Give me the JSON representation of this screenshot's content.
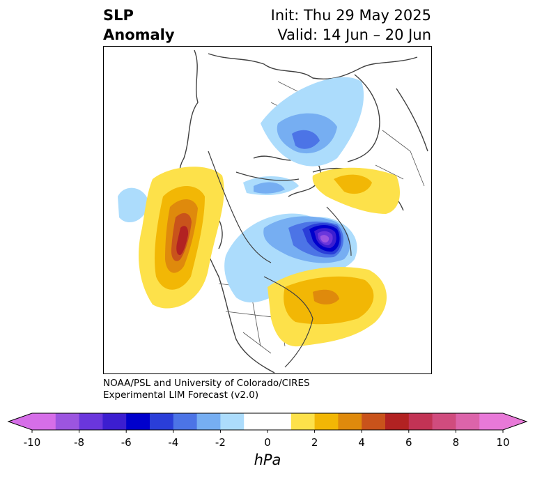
{
  "title": {
    "left_line1": "SLP",
    "left_line2": "Anomaly",
    "right_line1": "Init: Thu 29 May 2025",
    "right_line2": "Valid: 14 Jun – 20 Jun"
  },
  "credit": {
    "line1": "NOAA/PSL and University of Colorado/CIRES",
    "line2": "Experimental LIM Forecast (v2.0)"
  },
  "colorbar": {
    "units": "hPa",
    "min": -10,
    "max": 10,
    "tick_labels": [
      "-10",
      "-8",
      "-6",
      "-4",
      "-2",
      "0",
      "2",
      "4",
      "6",
      "8",
      "10"
    ],
    "tick_values": [
      -10,
      -8,
      -6,
      -4,
      -2,
      0,
      2,
      4,
      6,
      8,
      10
    ],
    "colors": [
      "#d66ee8",
      "#9c55e0",
      "#6a36dc",
      "#3c1ed0",
      "#0000cc",
      "#2a3ed8",
      "#4c74e6",
      "#76aef2",
      "#acdcfc",
      "#ffffff",
      "#ffffff",
      "#fde14a",
      "#f2b705",
      "#df8a0c",
      "#c9531b",
      "#b22222",
      "#c23355",
      "#d04c7e",
      "#dc64aa",
      "#e879d8"
    ],
    "under_color": "#d66ee8",
    "over_color": "#e879d8"
  },
  "map": {
    "projection": "polar-stereographic-north",
    "colors": {
      "land_outline": "#404040",
      "ocean": "#ffffff"
    }
  }
}
